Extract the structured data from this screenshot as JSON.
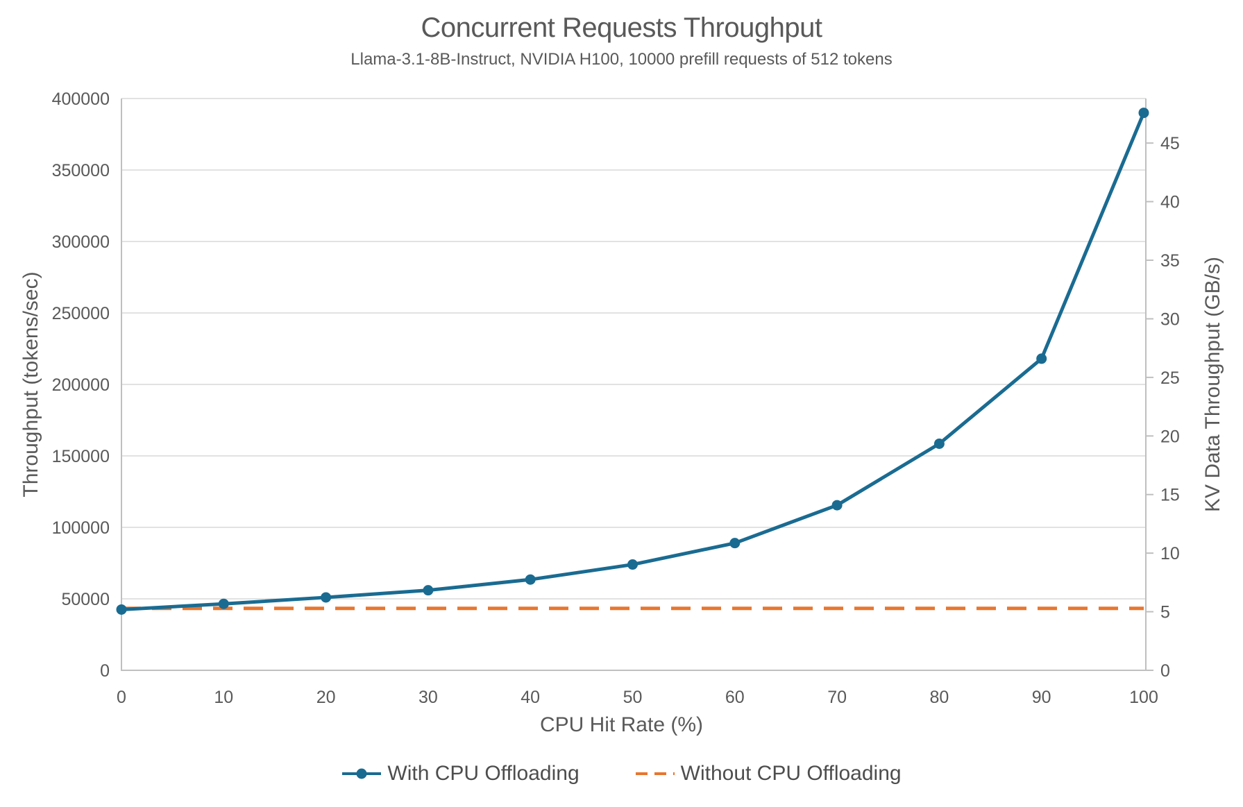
{
  "chart_data": {
    "type": "line",
    "title": "Concurrent Requests Throughput",
    "subtitle": "Llama-3.1-8B-Instruct, NVIDIA H100, 10000 prefill requests of 512 tokens",
    "xlabel": "CPU Hit Rate (%)",
    "ylabel_left": "Throughput (tokens/sec)",
    "ylabel_right": "KV Data Throughput (GB/s)",
    "x": [
      0,
      10,
      20,
      30,
      40,
      50,
      60,
      70,
      80,
      90,
      100
    ],
    "x_ticks": [
      0,
      10,
      20,
      30,
      40,
      50,
      60,
      70,
      80,
      90,
      100
    ],
    "xlim": [
      0,
      100
    ],
    "ylim_left": [
      0,
      400000
    ],
    "y_ticks_left": [
      0,
      50000,
      100000,
      150000,
      200000,
      250000,
      300000,
      350000,
      400000
    ],
    "ylim_right": [
      0,
      48.8
    ],
    "y_ticks_right": [
      0,
      5,
      10,
      15,
      20,
      25,
      30,
      35,
      40,
      45
    ],
    "grid": "horizontal",
    "legend_position": "bottom",
    "series": [
      {
        "name": "With CPU Offloading",
        "color": "#1a6b91",
        "line_style": "solid",
        "markers": true,
        "values": [
          42500,
          46500,
          51000,
          56000,
          63500,
          74000,
          89000,
          115500,
          158500,
          218000,
          390000
        ]
      },
      {
        "name": "Without CPU Offloading",
        "color": "#e8762f",
        "line_style": "dashed",
        "markers": false,
        "values": [
          43300,
          43300,
          43300,
          43300,
          43300,
          43300,
          43300,
          43300,
          43300,
          43300,
          43300
        ]
      }
    ],
    "colors": {
      "gridline": "#d9d9d9",
      "axis_line": "#bfbfbf",
      "tick_label": "#595959",
      "title_text": "#595959",
      "legend_text": "#4d4d4d"
    }
  }
}
